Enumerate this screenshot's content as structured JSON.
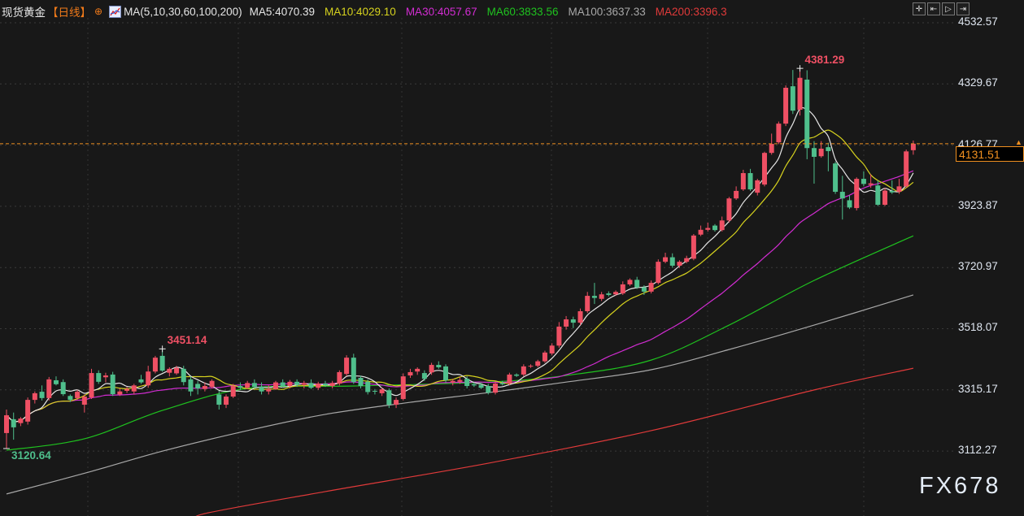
{
  "header": {
    "instrument": "现货黄金",
    "period": "【日线】",
    "indicator": "MA(5,10,30,60,100,200)",
    "ma_readouts": [
      {
        "label": "MA5:4070.39",
        "color": "#e6e6e6"
      },
      {
        "label": "MA10:4029.10",
        "color": "#d6d21e"
      },
      {
        "label": "MA30:4057.67",
        "color": "#d22cd2"
      },
      {
        "label": "MA60:3833.56",
        "color": "#1fc21f"
      },
      {
        "label": "MA100:3637.33",
        "color": "#a8a8a8"
      },
      {
        "label": "MA200:3396.3",
        "color": "#e03a3a"
      }
    ]
  },
  "toolbar": {
    "icons": [
      "crosshair-icon",
      "zoom-start-icon",
      "play-icon",
      "jump-end-icon"
    ],
    "glyphs": [
      "✛",
      "⇤",
      "▷",
      "⇥"
    ]
  },
  "watermark": "FX678",
  "colors": {
    "up": "#ef5064",
    "down": "#4fbf8c",
    "background": "#181818",
    "last_price": "#f09020"
  },
  "chart_data": {
    "type": "candlestick",
    "title": "",
    "xlabel": "",
    "ylabel": "",
    "ylim": [
      2905,
      4560
    ],
    "y_ticks": [
      4532.57,
      4329.67,
      4126.77,
      3923.87,
      3720.97,
      3518.07,
      3315.17,
      3112.27
    ],
    "y_tick_labels": [
      "4532.57",
      "4329.67",
      "4126.77",
      "3923.87",
      "3720.97",
      "3518.07",
      "3315.17",
      "3112.27"
    ],
    "grid": true,
    "last_price": 4131.51,
    "last_price_label": "4131.51",
    "annotations": [
      {
        "label": "4381.29",
        "index": 112,
        "value": 4381.29,
        "kind": "high",
        "color": "#ef5064"
      },
      {
        "label": "3451.14",
        "index": 22,
        "value": 3451.14,
        "kind": "high",
        "color": "#ef5064"
      },
      {
        "label": "3120.64",
        "index": 0,
        "value": 3120.64,
        "kind": "low",
        "color": "#4fbf8c"
      }
    ],
    "ohlc": [
      [
        3172,
        3250,
        3120.64,
        3231
      ],
      [
        3218,
        3240,
        3150,
        3191
      ],
      [
        3205,
        3225,
        3195,
        3220
      ],
      [
        3210,
        3290,
        3200,
        3282
      ],
      [
        3282,
        3310,
        3270,
        3304
      ],
      [
        3309,
        3330,
        3280,
        3288
      ],
      [
        3288,
        3358,
        3280,
        3350
      ],
      [
        3347,
        3360,
        3330,
        3334
      ],
      [
        3341,
        3350,
        3295,
        3301
      ],
      [
        3295,
        3300,
        3275,
        3282
      ],
      [
        3288,
        3315,
        3282,
        3309
      ],
      [
        3266,
        3300,
        3240,
        3293
      ],
      [
        3290,
        3385,
        3285,
        3371
      ],
      [
        3371,
        3380,
        3335,
        3342
      ],
      [
        3357,
        3372,
        3340,
        3363
      ],
      [
        3366,
        3375,
        3295,
        3301
      ],
      [
        3300,
        3320,
        3295,
        3310
      ],
      [
        3312,
        3325,
        3305,
        3318
      ],
      [
        3310,
        3335,
        3300,
        3330
      ],
      [
        3350,
        3365,
        3335,
        3340
      ],
      [
        3330,
        3395,
        3322,
        3376
      ],
      [
        3376,
        3428,
        3370,
        3422
      ],
      [
        3428,
        3451.14,
        3375,
        3379
      ],
      [
        3372,
        3390,
        3360,
        3385
      ],
      [
        3370,
        3395,
        3365,
        3388
      ],
      [
        3385,
        3395,
        3330,
        3341
      ],
      [
        3350,
        3360,
        3295,
        3310
      ],
      [
        3335,
        3345,
        3300,
        3320
      ],
      [
        3318,
        3340,
        3310,
        3328
      ],
      [
        3325,
        3350,
        3320,
        3345
      ],
      [
        3300,
        3312,
        3250,
        3266
      ],
      [
        3266,
        3300,
        3255,
        3293
      ],
      [
        3293,
        3335,
        3288,
        3328
      ],
      [
        3328,
        3340,
        3315,
        3322
      ],
      [
        3322,
        3345,
        3318,
        3338
      ],
      [
        3338,
        3350,
        3320,
        3325
      ],
      [
        3325,
        3340,
        3300,
        3310
      ],
      [
        3310,
        3330,
        3300,
        3318
      ],
      [
        3318,
        3345,
        3315,
        3340
      ],
      [
        3340,
        3350,
        3322,
        3328
      ],
      [
        3328,
        3348,
        3320,
        3342
      ],
      [
        3342,
        3350,
        3325,
        3332
      ],
      [
        3332,
        3345,
        3320,
        3338
      ],
      [
        3338,
        3350,
        3318,
        3322
      ],
      [
        3322,
        3342,
        3315,
        3336
      ],
      [
        3336,
        3345,
        3325,
        3330
      ],
      [
        3328,
        3345,
        3320,
        3338
      ],
      [
        3336,
        3380,
        3330,
        3374
      ],
      [
        3368,
        3430,
        3360,
        3422
      ],
      [
        3422,
        3435,
        3335,
        3341
      ],
      [
        3355,
        3362,
        3320,
        3328
      ],
      [
        3342,
        3350,
        3300,
        3308
      ],
      [
        3312,
        3318,
        3300,
        3310
      ],
      [
        3304,
        3322,
        3295,
        3317
      ],
      [
        3314,
        3320,
        3255,
        3266
      ],
      [
        3266,
        3290,
        3255,
        3282
      ],
      [
        3285,
        3370,
        3280,
        3360
      ],
      [
        3363,
        3385,
        3355,
        3374
      ],
      [
        3376,
        3390,
        3365,
        3385
      ],
      [
        3371,
        3380,
        3345,
        3352
      ],
      [
        3373,
        3405,
        3365,
        3398
      ],
      [
        3398,
        3410,
        3385,
        3390
      ],
      [
        3393,
        3400,
        3340,
        3347
      ],
      [
        3340,
        3352,
        3330,
        3345
      ],
      [
        3342,
        3358,
        3335,
        3348
      ],
      [
        3352,
        3360,
        3320,
        3328
      ],
      [
        3334,
        3340,
        3325,
        3330
      ],
      [
        3332,
        3338,
        3318,
        3322
      ],
      [
        3328,
        3335,
        3300,
        3306
      ],
      [
        3306,
        3345,
        3300,
        3336
      ],
      [
        3338,
        3345,
        3330,
        3334
      ],
      [
        3336,
        3372,
        3330,
        3366
      ],
      [
        3366,
        3370,
        3358,
        3362
      ],
      [
        3366,
        3400,
        3360,
        3393
      ],
      [
        3393,
        3400,
        3388,
        3395
      ],
      [
        3395,
        3415,
        3390,
        3410
      ],
      [
        3410,
        3445,
        3405,
        3439
      ],
      [
        3436,
        3470,
        3430,
        3462
      ],
      [
        3462,
        3540,
        3455,
        3525
      ],
      [
        3525,
        3560,
        3515,
        3549
      ],
      [
        3549,
        3558,
        3520,
        3538
      ],
      [
        3538,
        3585,
        3530,
        3576
      ],
      [
        3576,
        3640,
        3570,
        3627
      ],
      [
        3627,
        3670,
        3600,
        3620
      ],
      [
        3617,
        3640,
        3610,
        3632
      ],
      [
        3635,
        3642,
        3625,
        3630
      ],
      [
        3632,
        3645,
        3628,
        3640
      ],
      [
        3635,
        3675,
        3630,
        3665
      ],
      [
        3665,
        3685,
        3660,
        3680
      ],
      [
        3680,
        3690,
        3650,
        3655
      ],
      [
        3655,
        3662,
        3630,
        3641
      ],
      [
        3641,
        3678,
        3635,
        3670
      ],
      [
        3670,
        3748,
        3665,
        3740
      ],
      [
        3740,
        3770,
        3735,
        3755
      ],
      [
        3755,
        3768,
        3720,
        3727
      ],
      [
        3727,
        3745,
        3720,
        3740
      ],
      [
        3740,
        3760,
        3735,
        3752
      ],
      [
        3750,
        3832,
        3745,
        3827
      ],
      [
        3830,
        3860,
        3825,
        3846
      ],
      [
        3846,
        3870,
        3840,
        3852
      ],
      [
        3860,
        3865,
        3840,
        3845
      ],
      [
        3845,
        3890,
        3840,
        3877
      ],
      [
        3877,
        3955,
        3870,
        3950
      ],
      [
        3950,
        3990,
        3945,
        3975
      ],
      [
        3980,
        4045,
        3975,
        4034
      ],
      [
        4034,
        4048,
        3975,
        3980
      ],
      [
        3969,
        4015,
        3960,
        4010
      ],
      [
        3996,
        4105,
        3990,
        4101
      ],
      [
        4101,
        4165,
        4095,
        4131
      ],
      [
        4136,
        4205,
        4130,
        4198
      ],
      [
        4198,
        4325,
        4190,
        4317
      ],
      [
        4322,
        4376,
        4230,
        4241
      ],
      [
        4244,
        4381.29,
        4225,
        4350
      ],
      [
        4344,
        4375,
        4080,
        4117
      ],
      [
        4117,
        4140,
        3999,
        4088
      ],
      [
        4090,
        4140,
        4085,
        4115
      ],
      [
        4120,
        4135,
        4040,
        4107
      ],
      [
        4066,
        4072,
        3965,
        3972
      ],
      [
        3972,
        4025,
        3880,
        3950
      ],
      [
        3944,
        3960,
        3915,
        3920
      ],
      [
        3918,
        4020,
        3910,
        4015
      ],
      [
        4015,
        4040,
        3990,
        3998
      ],
      [
        3995,
        4030,
        3985,
        4000
      ],
      [
        3993,
        4010,
        3925,
        3929
      ],
      [
        3929,
        3985,
        3925,
        3976
      ],
      [
        3975,
        4010,
        3965,
        3970
      ],
      [
        3972,
        4015,
        3965,
        3990
      ],
      [
        3990,
        4112,
        3985,
        4106
      ],
      [
        4110,
        4142,
        4095,
        4131.51
      ]
    ],
    "series": [
      {
        "name": "MA5",
        "period": 5,
        "color": "#e6e6e6"
      },
      {
        "name": "MA10",
        "period": 10,
        "color": "#d6d21e"
      },
      {
        "name": "MA30",
        "period": 30,
        "color": "#d22cd2"
      },
      {
        "name": "MA60",
        "color": "#1fc21f",
        "points": [
          [
            0,
            3115
          ],
          [
            11,
            3153
          ],
          [
            22,
            3247
          ],
          [
            34,
            3320
          ],
          [
            49,
            3328
          ],
          [
            68,
            3341
          ],
          [
            79,
            3363
          ],
          [
            91,
            3414
          ],
          [
            102,
            3530
          ],
          [
            114,
            3678
          ],
          [
            128,
            3826
          ]
        ]
      },
      {
        "name": "MA100",
        "color": "#a8a8a8",
        "points": [
          [
            0,
            2970
          ],
          [
            12,
            3045
          ],
          [
            22,
            3112
          ],
          [
            34,
            3180
          ],
          [
            45,
            3234
          ],
          [
            57,
            3274
          ],
          [
            68,
            3306
          ],
          [
            79,
            3341
          ],
          [
            91,
            3382
          ],
          [
            102,
            3449
          ],
          [
            114,
            3530
          ],
          [
            128,
            3630
          ]
        ]
      },
      {
        "name": "MA200",
        "color": "#e03a3a",
        "points": [
          [
            28,
            2905
          ],
          [
            45,
            2978
          ],
          [
            68,
            3072
          ],
          [
            91,
            3180
          ],
          [
            114,
            3315
          ],
          [
            128,
            3387
          ]
        ]
      }
    ]
  }
}
